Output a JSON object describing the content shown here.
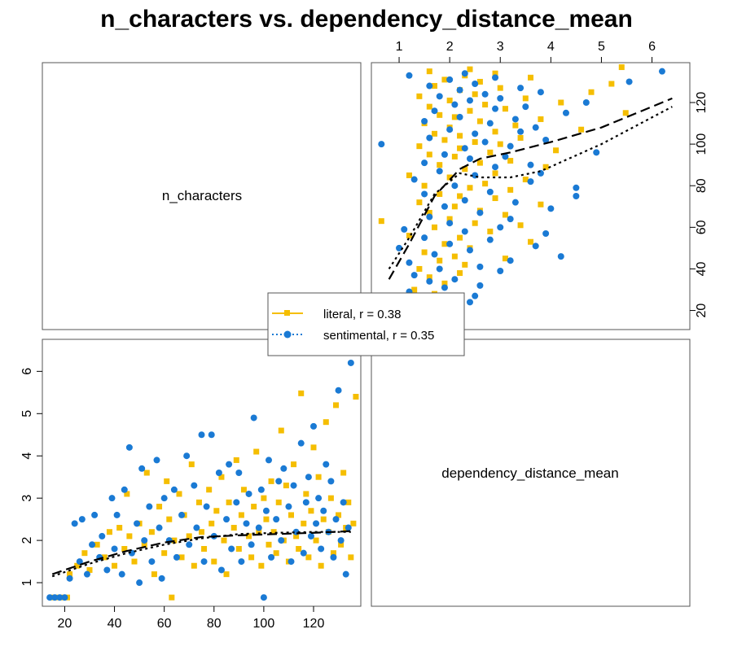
{
  "chart_data": {
    "type": "scatter",
    "title": "n_characters vs. dependency_distance_mean",
    "variables": [
      "n_characters",
      "dependency_distance_mean"
    ],
    "n_characters_axis": {
      "range": [
        12,
        138
      ],
      "ticks": [
        20,
        40,
        60,
        80,
        100,
        120
      ]
    },
    "dependency_distance_mean_axis": {
      "range": [
        0.5,
        6.7
      ],
      "ticks": [
        1,
        2,
        3,
        4,
        5,
        6
      ]
    },
    "series": [
      {
        "name": "literal, r = 0.38",
        "color": "#F5BE00",
        "marker": "square",
        "fit_line_style": "dashed",
        "fit_curve": [
          [
            15,
            1.2
          ],
          [
            30,
            1.5
          ],
          [
            45,
            1.75
          ],
          [
            60,
            1.95
          ],
          [
            75,
            2.08
          ],
          [
            90,
            2.12
          ],
          [
            105,
            2.15
          ],
          [
            120,
            2.18
          ],
          [
            135,
            2.22
          ]
        ],
        "points": [
          [
            15,
            0.65
          ],
          [
            17,
            0.65
          ],
          [
            19,
            0.65
          ],
          [
            21,
            0.65
          ],
          [
            22,
            1.2
          ],
          [
            25,
            1.4
          ],
          [
            28,
            1.7
          ],
          [
            30,
            1.3
          ],
          [
            33,
            1.9
          ],
          [
            36,
            1.6
          ],
          [
            38,
            2.2
          ],
          [
            40,
            1.4
          ],
          [
            42,
            2.3
          ],
          [
            44,
            1.8
          ],
          [
            45,
            3.1
          ],
          [
            46,
            2.1
          ],
          [
            48,
            1.5
          ],
          [
            50,
            2.4
          ],
          [
            52,
            1.9
          ],
          [
            53,
            3.6
          ],
          [
            55,
            2.2
          ],
          [
            56,
            1.2
          ],
          [
            58,
            2.8
          ],
          [
            60,
            1.7
          ],
          [
            61,
            3.4
          ],
          [
            62,
            2.5
          ],
          [
            63,
            0.65
          ],
          [
            64,
            2.0
          ],
          [
            66,
            3.1
          ],
          [
            67,
            1.6
          ],
          [
            68,
            2.6
          ],
          [
            70,
            2.1
          ],
          [
            71,
            3.8
          ],
          [
            72,
            1.4
          ],
          [
            74,
            2.9
          ],
          [
            75,
            2.2
          ],
          [
            76,
            1.8
          ],
          [
            78,
            3.2
          ],
          [
            79,
            2.4
          ],
          [
            80,
            1.5
          ],
          [
            81,
            2.7
          ],
          [
            83,
            3.5
          ],
          [
            84,
            2.0
          ],
          [
            85,
            1.2
          ],
          [
            86,
            2.9
          ],
          [
            88,
            2.3
          ],
          [
            89,
            3.9
          ],
          [
            90,
            1.8
          ],
          [
            91,
            2.6
          ],
          [
            92,
            3.2
          ],
          [
            94,
            2.1
          ],
          [
            95,
            1.6
          ],
          [
            96,
            2.8
          ],
          [
            97,
            4.1
          ],
          [
            98,
            2.2
          ],
          [
            99,
            1.4
          ],
          [
            100,
            3.0
          ],
          [
            101,
            2.5
          ],
          [
            102,
            1.9
          ],
          [
            103,
            3.4
          ],
          [
            104,
            2.2
          ],
          [
            105,
            1.7
          ],
          [
            106,
            2.9
          ],
          [
            107,
            4.6
          ],
          [
            108,
            2.0
          ],
          [
            109,
            3.3
          ],
          [
            110,
            1.5
          ],
          [
            111,
            2.6
          ],
          [
            112,
            3.8
          ],
          [
            113,
            2.1
          ],
          [
            114,
            1.8
          ],
          [
            115,
            5.48
          ],
          [
            116,
            2.4
          ],
          [
            117,
            3.1
          ],
          [
            118,
            1.6
          ],
          [
            119,
            2.7
          ],
          [
            120,
            4.2
          ],
          [
            121,
            2.0
          ],
          [
            122,
            3.5
          ],
          [
            123,
            1.4
          ],
          [
            124,
            2.5
          ],
          [
            125,
            4.8
          ],
          [
            126,
            2.2
          ],
          [
            127,
            3.0
          ],
          [
            128,
            1.7
          ],
          [
            129,
            5.2
          ],
          [
            130,
            2.6
          ],
          [
            131,
            1.9
          ],
          [
            132,
            3.6
          ],
          [
            133,
            2.3
          ],
          [
            134,
            2.9
          ],
          [
            135,
            1.6
          ],
          [
            136,
            2.4
          ],
          [
            137,
            5.4
          ]
        ]
      },
      {
        "name": "sentimental, r = 0.35",
        "color": "#1A7AD4",
        "marker": "circle",
        "fit_line_style": "dotted",
        "fit_curve": [
          [
            15,
            1.15
          ],
          [
            30,
            1.45
          ],
          [
            45,
            1.7
          ],
          [
            60,
            1.9
          ],
          [
            75,
            2.05
          ],
          [
            90,
            2.15
          ],
          [
            105,
            2.18
          ],
          [
            120,
            2.2
          ],
          [
            135,
            2.2
          ]
        ],
        "points": [
          [
            14,
            0.65
          ],
          [
            16,
            0.65
          ],
          [
            18,
            0.65
          ],
          [
            20,
            0.65
          ],
          [
            22,
            1.1
          ],
          [
            24,
            2.4
          ],
          [
            26,
            1.5
          ],
          [
            27,
            2.5
          ],
          [
            29,
            1.2
          ],
          [
            31,
            1.9
          ],
          [
            32,
            2.6
          ],
          [
            34,
            1.6
          ],
          [
            35,
            2.1
          ],
          [
            37,
            1.3
          ],
          [
            39,
            3.0
          ],
          [
            40,
            1.8
          ],
          [
            41,
            2.6
          ],
          [
            43,
            1.2
          ],
          [
            44,
            3.2
          ],
          [
            46,
            4.2
          ],
          [
            47,
            1.7
          ],
          [
            49,
            2.4
          ],
          [
            50,
            1.0
          ],
          [
            51,
            3.7
          ],
          [
            52,
            2.0
          ],
          [
            54,
            2.8
          ],
          [
            55,
            1.5
          ],
          [
            57,
            3.9
          ],
          [
            58,
            2.3
          ],
          [
            59,
            1.1
          ],
          [
            60,
            3.0
          ],
          [
            62,
            2.0
          ],
          [
            64,
            3.2
          ],
          [
            65,
            1.6
          ],
          [
            67,
            2.6
          ],
          [
            69,
            4.0
          ],
          [
            70,
            1.9
          ],
          [
            72,
            3.3
          ],
          [
            73,
            2.3
          ],
          [
            75,
            4.5
          ],
          [
            76,
            1.5
          ],
          [
            77,
            2.8
          ],
          [
            79,
            4.5
          ],
          [
            80,
            2.1
          ],
          [
            82,
            3.6
          ],
          [
            83,
            1.3
          ],
          [
            85,
            2.5
          ],
          [
            86,
            3.8
          ],
          [
            87,
            1.8
          ],
          [
            89,
            2.9
          ],
          [
            90,
            3.6
          ],
          [
            91,
            1.5
          ],
          [
            93,
            2.4
          ],
          [
            94,
            3.1
          ],
          [
            95,
            1.9
          ],
          [
            96,
            4.9
          ],
          [
            98,
            2.3
          ],
          [
            99,
            3.2
          ],
          [
            100,
            0.65
          ],
          [
            101,
            2.7
          ],
          [
            102,
            3.9
          ],
          [
            103,
            1.6
          ],
          [
            105,
            2.5
          ],
          [
            106,
            3.4
          ],
          [
            107,
            2.0
          ],
          [
            108,
            3.7
          ],
          [
            110,
            2.8
          ],
          [
            111,
            1.5
          ],
          [
            112,
            3.3
          ],
          [
            113,
            2.2
          ],
          [
            115,
            4.3
          ],
          [
            116,
            1.7
          ],
          [
            117,
            2.9
          ],
          [
            118,
            3.5
          ],
          [
            119,
            2.1
          ],
          [
            120,
            4.7
          ],
          [
            121,
            2.4
          ],
          [
            122,
            3.0
          ],
          [
            123,
            1.8
          ],
          [
            124,
            2.7
          ],
          [
            125,
            3.8
          ],
          [
            126,
            2.2
          ],
          [
            127,
            3.4
          ],
          [
            128,
            1.6
          ],
          [
            129,
            2.5
          ],
          [
            130,
            5.55
          ],
          [
            131,
            2.0
          ],
          [
            132,
            2.9
          ],
          [
            133,
            1.2
          ],
          [
            134,
            2.3
          ],
          [
            135,
            6.2
          ]
        ]
      }
    ]
  }
}
